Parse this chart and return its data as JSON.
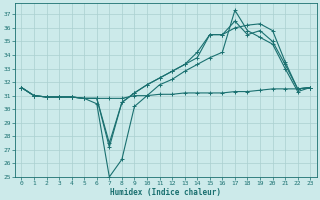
{
  "xlabel": "Humidex (Indice chaleur)",
  "xlim": [
    -0.5,
    23.5
  ],
  "ylim": [
    25,
    37.8
  ],
  "yticks": [
    25,
    26,
    27,
    28,
    29,
    30,
    31,
    32,
    33,
    34,
    35,
    36,
    37
  ],
  "xticks": [
    0,
    1,
    2,
    3,
    4,
    5,
    6,
    7,
    8,
    9,
    10,
    11,
    12,
    13,
    14,
    15,
    16,
    17,
    18,
    19,
    20,
    21,
    22,
    23
  ],
  "bg_color": "#cceaea",
  "line_color": "#1a7070",
  "grid_color": "#aad0d0",
  "lines": [
    [
      31.6,
      31.0,
      30.9,
      30.9,
      30.9,
      30.8,
      30.4,
      25.0,
      26.3,
      30.2,
      31.0,
      31.8,
      32.2,
      32.8,
      33.3,
      33.8,
      34.2,
      37.3,
      35.8,
      35.3,
      34.8,
      33.0,
      31.3,
      31.6
    ],
    [
      31.6,
      31.0,
      30.9,
      30.9,
      30.9,
      30.8,
      30.8,
      27.2,
      30.5,
      31.2,
      31.8,
      32.3,
      32.8,
      33.3,
      33.8,
      35.5,
      35.5,
      36.5,
      35.5,
      35.8,
      35.0,
      33.3,
      31.5,
      31.6
    ],
    [
      31.6,
      31.0,
      30.9,
      30.9,
      30.9,
      30.8,
      30.8,
      27.5,
      30.5,
      31.2,
      31.8,
      32.3,
      32.8,
      33.3,
      34.2,
      35.5,
      35.5,
      36.0,
      36.2,
      36.3,
      35.8,
      33.5,
      31.5,
      31.6
    ],
    [
      31.6,
      31.0,
      30.9,
      30.9,
      30.9,
      30.8,
      30.8,
      30.8,
      30.8,
      31.0,
      31.0,
      31.1,
      31.1,
      31.2,
      31.2,
      31.2,
      31.2,
      31.3,
      31.3,
      31.4,
      31.5,
      31.5,
      31.5,
      31.6
    ]
  ]
}
